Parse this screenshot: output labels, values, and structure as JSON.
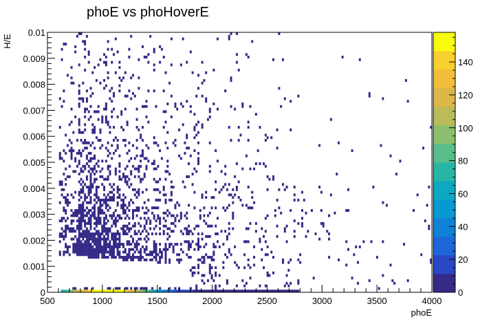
{
  "chart_data": {
    "type": "heatmap",
    "title": "phoE vs phoHoverE",
    "xlabel": "phoE",
    "ylabel": "H/E",
    "xlim": [
      500,
      4000
    ],
    "ylim": [
      0,
      0.01
    ],
    "x_ticks": [
      "500",
      "1000",
      "1500",
      "2000",
      "2500",
      "3000",
      "3500",
      "4000"
    ],
    "y_ticks": [
      "0",
      "0.001",
      "0.002",
      "0.003",
      "0.004",
      "0.005",
      "0.006",
      "0.007",
      "0.008",
      "0.009",
      "0.01"
    ],
    "z_ticks": [
      "0",
      "20",
      "40",
      "60",
      "80",
      "100",
      "120",
      "140"
    ],
    "zlim": [
      0,
      158
    ],
    "bins": {
      "nx": 200,
      "ny": 100
    },
    "colormap": [
      "#352a87",
      "#2a48c6",
      "#1e67d9",
      "#0f81d8",
      "#0a98d0",
      "#0ea9c0",
      "#28b6a4",
      "#58bd8a",
      "#8bbf6e",
      "#b9bc58",
      "#dcb749",
      "#f2bd3a",
      "#f9d12e",
      "#f9fb0e"
    ],
    "distribution": {
      "x_peak": 1100,
      "y_band_peak": 0.0013,
      "zero_row_x_range": [
        620,
        2800
      ],
      "zero_row_peak_value": 158
    },
    "grid": false,
    "legend": "colorbar-right"
  }
}
